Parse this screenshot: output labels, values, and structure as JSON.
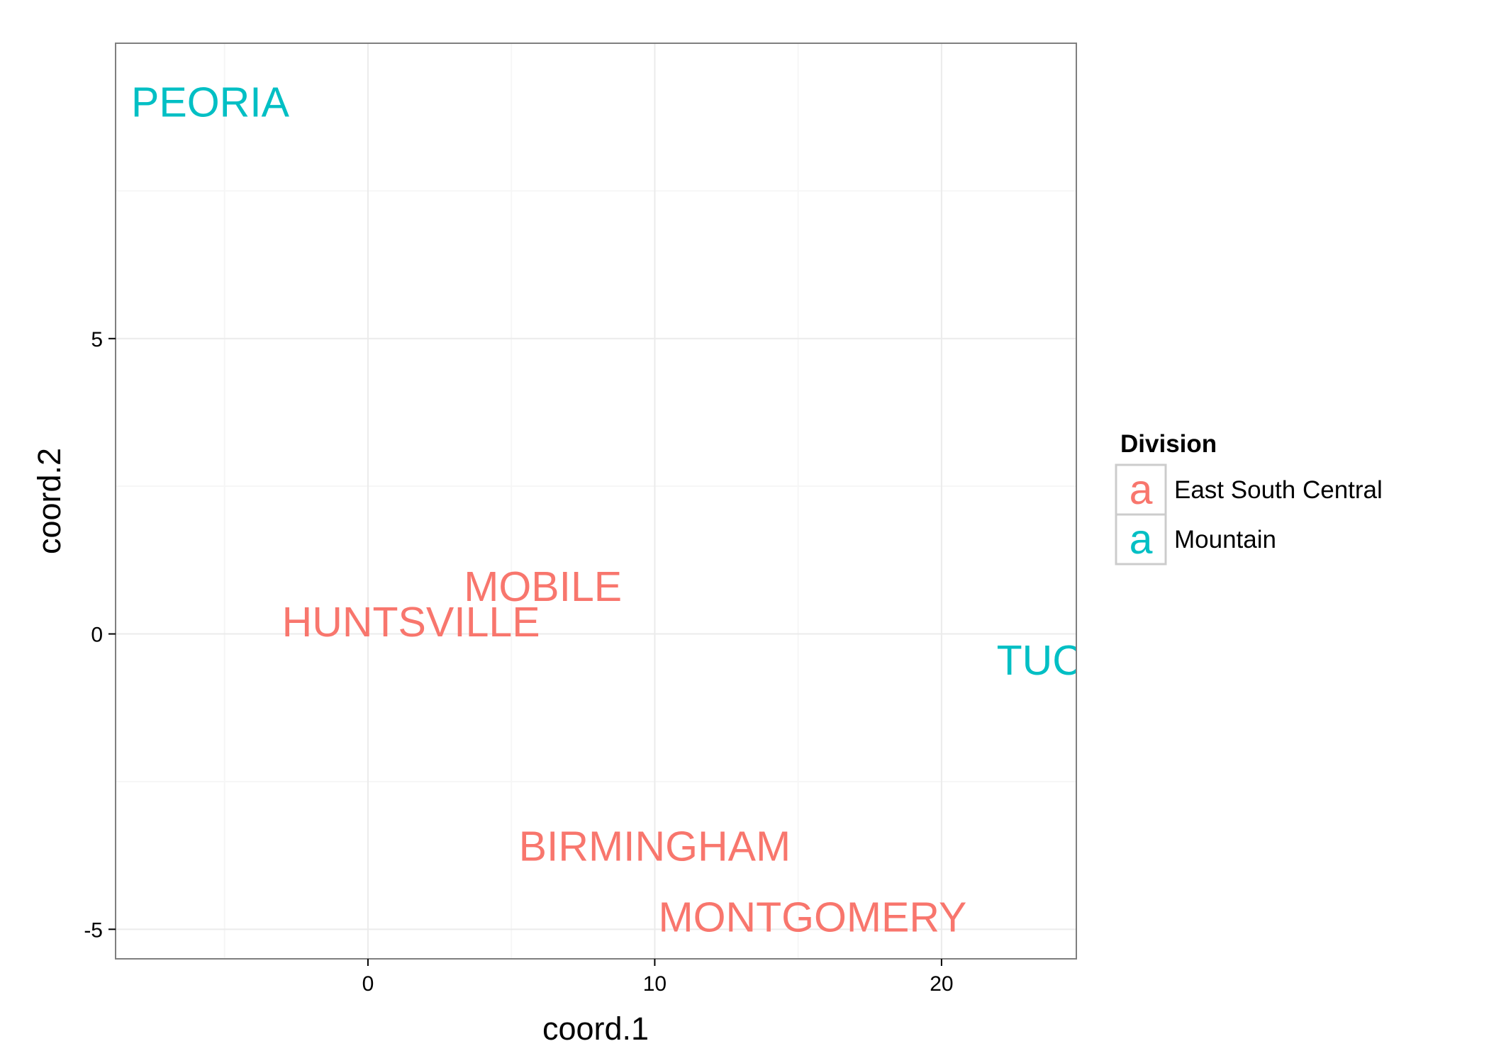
{
  "chart_data": {
    "type": "scatter",
    "title": "",
    "xlabel": "coord.1",
    "ylabel": "coord.2",
    "xlim": [
      -8.8,
      24.7
    ],
    "ylim": [
      -5.5,
      10.0
    ],
    "x_ticks": [
      {
        "value": 0,
        "label": "0"
      },
      {
        "value": 10,
        "label": "10"
      },
      {
        "value": 20,
        "label": "20"
      }
    ],
    "y_ticks": [
      {
        "value": -5,
        "label": "-5"
      },
      {
        "value": 0,
        "label": "0"
      },
      {
        "value": 5,
        "label": "5"
      }
    ],
    "grid": true,
    "legend": {
      "title": "Division",
      "position": "right",
      "glyph": "a",
      "entries": [
        {
          "label": "East South Central",
          "color": "#F8766D"
        },
        {
          "label": "Mountain",
          "color": "#00BFC4"
        }
      ]
    },
    "points": [
      {
        "label": "PEORIA",
        "x": -5.5,
        "y": 9.0,
        "series": "Mountain"
      },
      {
        "label": "MOBILE",
        "x": 6.1,
        "y": 0.8,
        "series": "East South Central"
      },
      {
        "label": "HUNTSVILLE",
        "x": 1.5,
        "y": 0.2,
        "series": "East South Central"
      },
      {
        "label": "TUCSON",
        "x": 25.0,
        "y": -0.45,
        "series": "Mountain"
      },
      {
        "label": "BIRMINGHAM",
        "x": 10.0,
        "y": -3.6,
        "series": "East South Central"
      },
      {
        "label": "MONTGOMERY",
        "x": 15.5,
        "y": -4.8,
        "series": "East South Central"
      }
    ]
  }
}
